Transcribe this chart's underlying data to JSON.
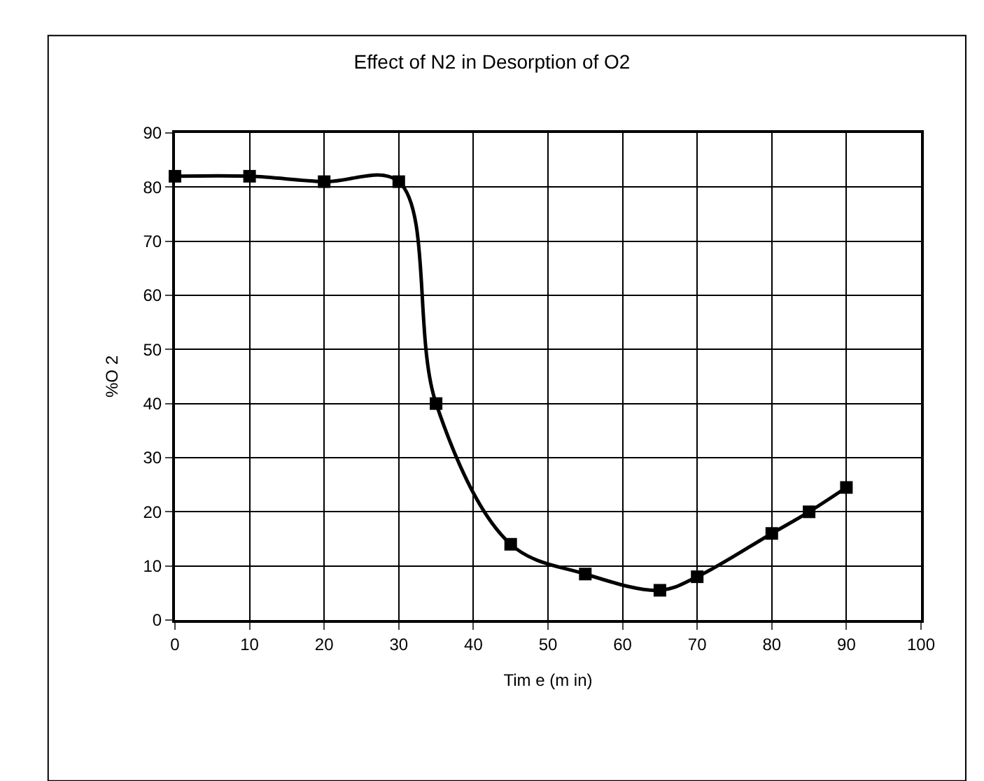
{
  "chart_data": {
    "type": "line",
    "title": "Effect of N2 in Desorption of O2",
    "xlabel": "Tim e (m in)",
    "ylabel": "%O 2",
    "x": [
      0,
      10,
      20,
      30,
      35,
      45,
      55,
      65,
      70,
      80,
      85,
      90
    ],
    "series": [
      {
        "color": "#000000",
        "values": [
          82,
          82,
          81,
          81,
          40,
          14,
          8.5,
          5.5,
          8,
          16,
          20,
          24.5
        ]
      }
    ],
    "xlim": [
      0,
      100
    ],
    "xticks": [
      0,
      10,
      20,
      30,
      40,
      50,
      60,
      70,
      80,
      90,
      100
    ],
    "ylim": [
      0,
      90
    ],
    "yticks": [
      0,
      10,
      20,
      30,
      40,
      50,
      60,
      70,
      80,
      90
    ],
    "grid": true,
    "marker": "square",
    "line_style": "solid",
    "legend": false
  }
}
